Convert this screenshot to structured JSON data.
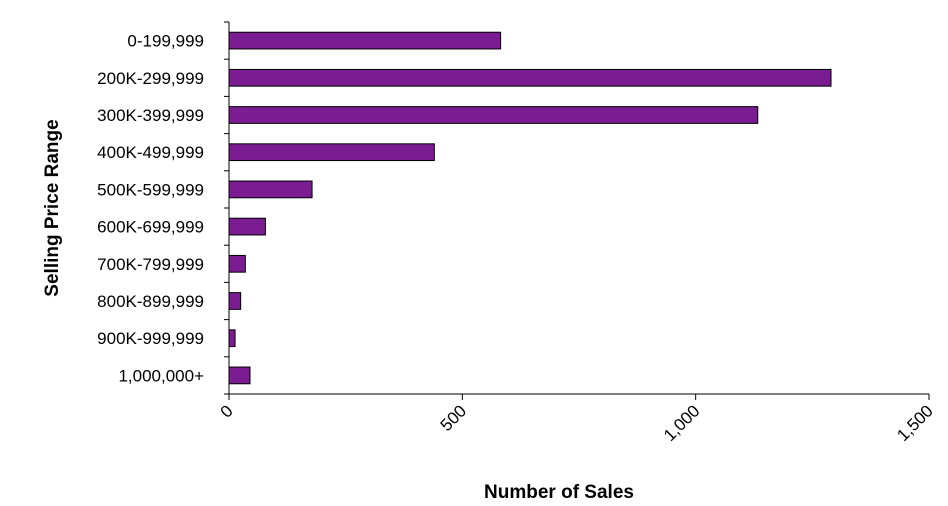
{
  "chart_data": {
    "type": "bar",
    "orientation": "horizontal",
    "categories": [
      "0-199,999",
      "200K-299,999",
      "300K-399,999",
      "400K-499,999",
      "500K-599,999",
      "600K-699,999",
      "700K-799,999",
      "800K-899,999",
      "900K-999,999",
      "1,000,000+"
    ],
    "values": [
      582,
      1290,
      1133,
      440,
      178,
      78,
      35,
      25,
      13,
      45
    ],
    "xlabel": "Number of Sales",
    "ylabel": "Selling Price Range",
    "xlim": [
      0,
      1500
    ],
    "x_ticks": [
      "0",
      "500",
      "1,000",
      "1,500"
    ],
    "x_tick_values": [
      0,
      500,
      1000,
      1500
    ],
    "grid": false,
    "legend": "none",
    "bar_color": "#7B1C92",
    "bar_edge_color": "#000000"
  }
}
